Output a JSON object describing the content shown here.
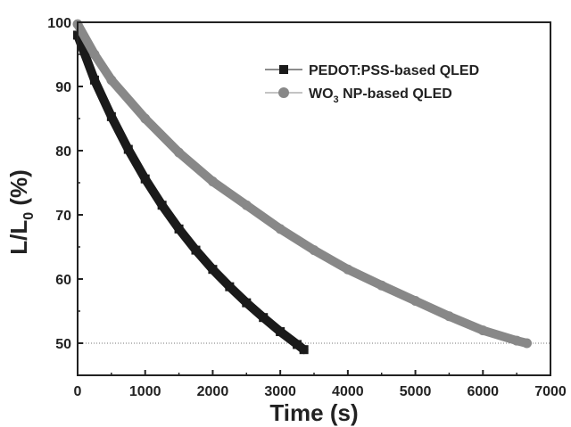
{
  "chart_data": {
    "type": "line",
    "title": "",
    "xlabel": "Time (s)",
    "ylabel": {
      "main": "L/L",
      "sub": "0",
      "unit": " (%)"
    },
    "xlim": [
      0,
      7000
    ],
    "ylim": [
      45,
      100
    ],
    "xticks": [
      "0",
      "1000",
      "2000",
      "3000",
      "4000",
      "5000",
      "6000",
      "7000"
    ],
    "yticks": [
      "50",
      "60",
      "70",
      "80",
      "90",
      "100"
    ],
    "xtick_values": [
      0,
      1000,
      2000,
      3000,
      4000,
      5000,
      6000,
      7000
    ],
    "ytick_values": [
      50,
      60,
      70,
      80,
      90,
      100
    ],
    "grid": false,
    "legend_position": "top-right",
    "reference_line": {
      "y": 50,
      "style": "dotted"
    },
    "series": [
      {
        "name": "PEDOT:PSS-based QLED",
        "color": "#1a1a1a",
        "marker": "square",
        "x": [
          0,
          250,
          500,
          750,
          1000,
          1250,
          1500,
          1750,
          2000,
          2250,
          2500,
          2750,
          3000,
          3250,
          3350
        ],
        "y": [
          98,
          91,
          85.3,
          80.2,
          75.6,
          71.5,
          67.8,
          64.5,
          61.5,
          58.8,
          56.3,
          54.0,
          51.8,
          49.8,
          49
        ]
      },
      {
        "name": {
          "main": "WO",
          "sub": "3",
          "rest": " NP-based QLED"
        },
        "color": "#888888",
        "marker": "circle",
        "x": [
          0,
          250,
          500,
          1000,
          1500,
          2000,
          2500,
          3000,
          3500,
          4000,
          4500,
          5000,
          5500,
          6000,
          6500,
          6650
        ],
        "y": [
          99.7,
          95,
          91,
          85,
          79.7,
          75.2,
          71.5,
          67.8,
          64.5,
          61.5,
          59,
          56.6,
          54.2,
          52.0,
          50.4,
          50
        ]
      }
    ]
  }
}
